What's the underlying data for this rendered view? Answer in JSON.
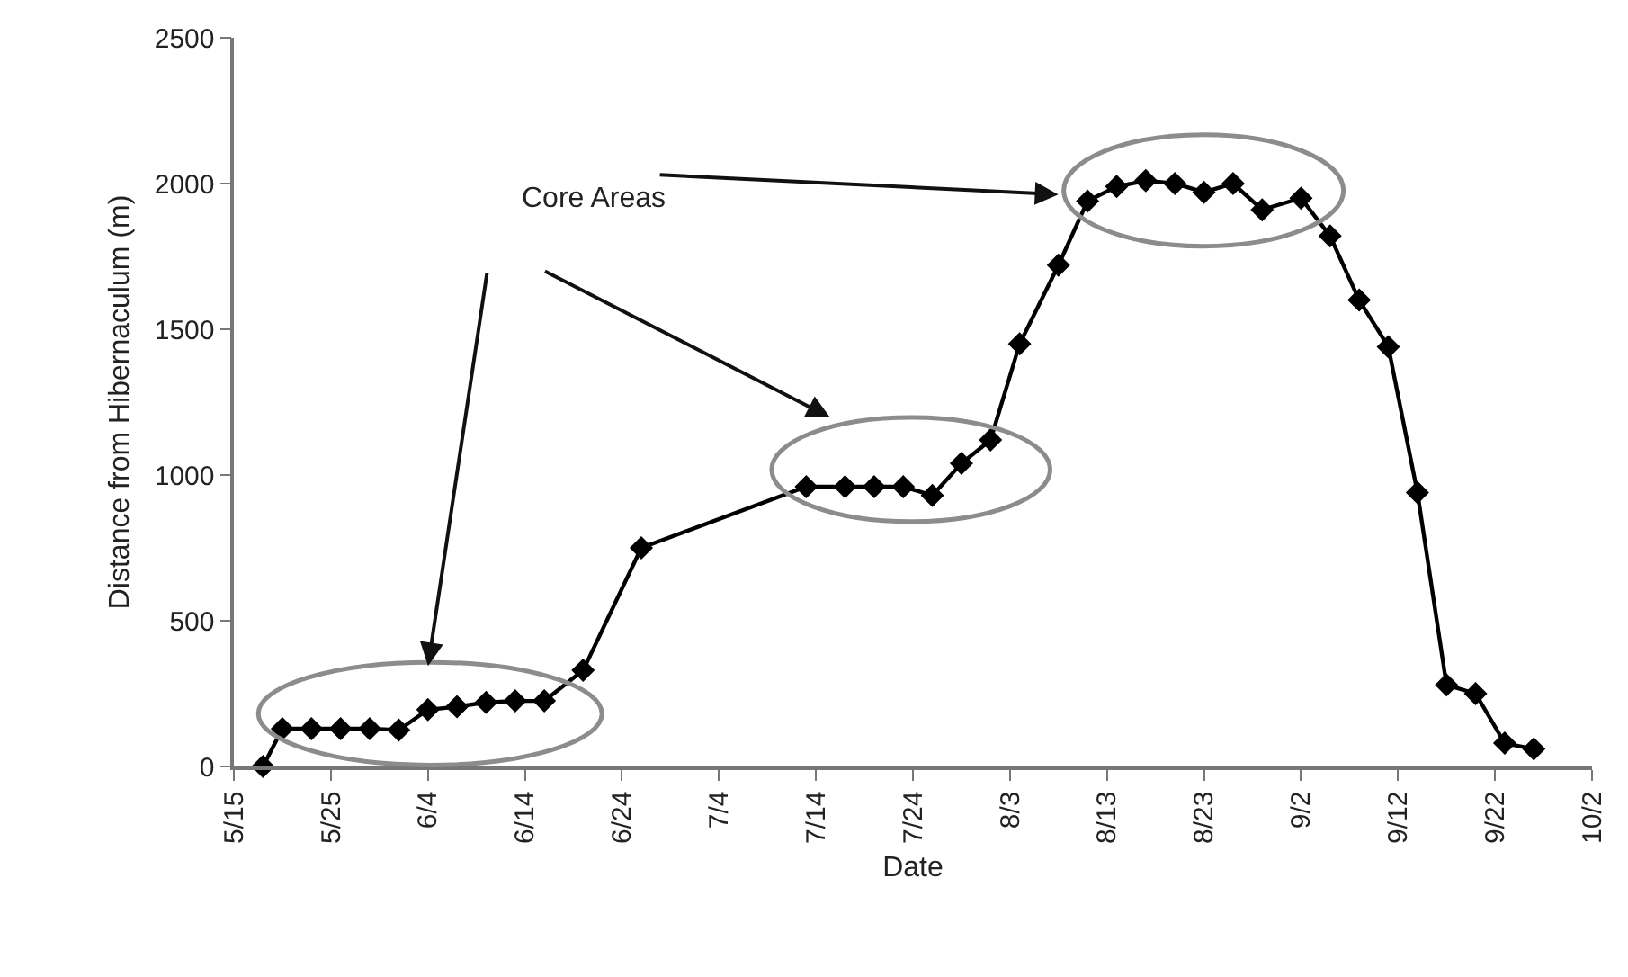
{
  "chart_data": {
    "type": "line",
    "xlabel": "Date",
    "ylabel": "Distance from Hibernaculum (m)",
    "annotations": [
      "Core Areas"
    ],
    "x": [
      "--05-18",
      "--05-20",
      "--05-23",
      "--05-26",
      "--05-29",
      "--06-01",
      "--06-04",
      "--06-07",
      "--06-10",
      "--06-13",
      "--06-16",
      "--06-20",
      "--06-26",
      "--07-13",
      "--07-17",
      "--07-20",
      "--07-23",
      "--07-26",
      "--07-29",
      "--08-01",
      "--08-04",
      "--08-08",
      "--08-11",
      "--08-14",
      "--08-17",
      "--08-20",
      "--08-23",
      "--08-26",
      "--08-29",
      "--09-02",
      "--09-05",
      "--09-08",
      "--09-11",
      "--09-14",
      "--09-17",
      "--09-20",
      "--09-23",
      "--09-26"
    ],
    "series": [
      {
        "color": "#000000",
        "values": [
          0,
          130,
          130,
          130,
          130,
          125,
          195,
          205,
          220,
          225,
          225,
          330,
          750,
          960,
          960,
          960,
          960,
          930,
          1040,
          1120,
          1450,
          1720,
          1940,
          1990,
          2010,
          2000,
          1970,
          2000,
          1910,
          1950,
          1820,
          1600,
          1440,
          940,
          280,
          250,
          80,
          60
        ]
      }
    ],
    "xlim": [
      "--05-15",
      "--10-02"
    ],
    "xticks": [
      {
        "value": "--05-15",
        "label": "5/15"
      },
      {
        "value": "--05-25",
        "label": "5/25"
      },
      {
        "value": "--06-04",
        "label": "6/4"
      },
      {
        "value": "--06-14",
        "label": "6/14"
      },
      {
        "value": "--06-24",
        "label": "6/24"
      },
      {
        "value": "--07-04",
        "label": "7/4"
      },
      {
        "value": "--07-14",
        "label": "7/14"
      },
      {
        "value": "--07-24",
        "label": "7/24"
      },
      {
        "value": "--08-03",
        "label": "8/3"
      },
      {
        "value": "--08-13",
        "label": "8/13"
      },
      {
        "value": "--08-23",
        "label": "8/23"
      },
      {
        "value": "--09-02",
        "label": "9/2"
      },
      {
        "value": "--09-12",
        "label": "9/12"
      },
      {
        "value": "--09-22",
        "label": "9/22"
      },
      {
        "value": "--10-02",
        "label": "10/2"
      }
    ],
    "ylim": [
      0,
      2500
    ],
    "yticks": [
      0,
      500,
      1000,
      1500,
      2000,
      2500
    ],
    "grid": false,
    "marker": "diamond",
    "line_style": "solid"
  }
}
